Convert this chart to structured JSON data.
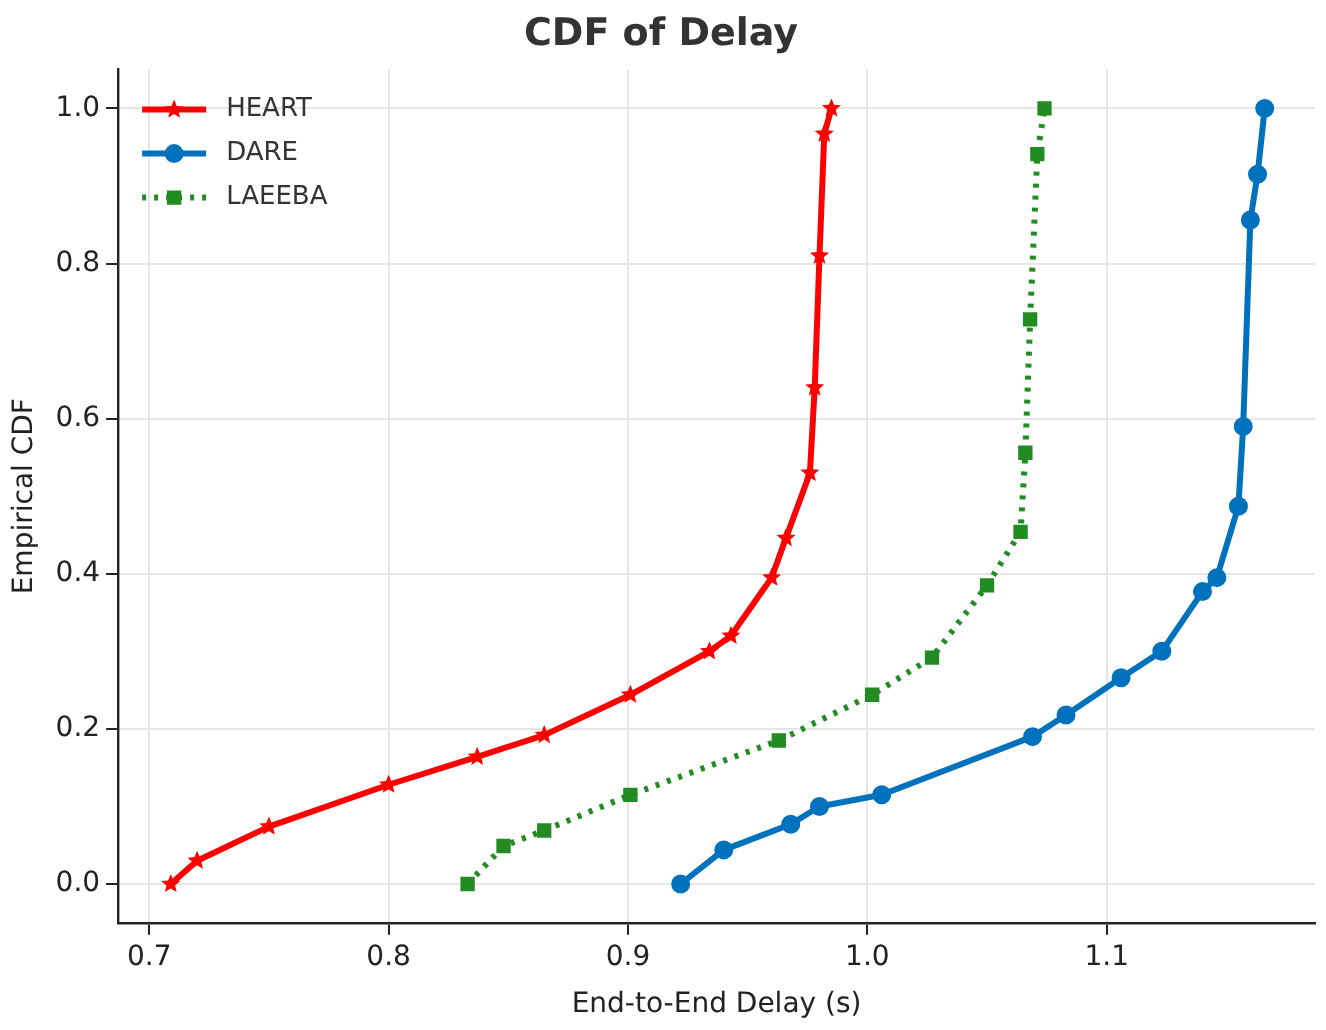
{
  "chart_data": {
    "type": "line",
    "title": "CDF of Delay",
    "xlabel": "End-to-End Delay (s)",
    "ylabel": "Empirical CDF",
    "xlim": [
      0.687,
      1.187
    ],
    "xticks": [
      0.7,
      0.8,
      0.9,
      {
        "value": 1,
        "label": "1.0"
      },
      1.1
    ],
    "ylim": [
      -0.05,
      1.05
    ],
    "yticks": [
      {
        "value": 0,
        "label": "0.0"
      },
      0.2,
      0.4,
      0.6,
      0.8,
      {
        "value": 1,
        "label": "1.0"
      }
    ],
    "grid": true,
    "legend": "top left",
    "series": [
      {
        "name": "HEART",
        "color": "#ff0000",
        "marker": "star",
        "line_style": "solid",
        "x": [
          0.709,
          0.72,
          0.75,
          0.8,
          0.837,
          0.865,
          0.901,
          0.934,
          0.943,
          0.96,
          0.966,
          0.976,
          0.978,
          0.98,
          0.982,
          0.985
        ],
        "values": [
          0,
          0.03,
          0.074,
          0.128,
          0.164,
          0.192,
          0.244,
          0.3,
          0.32,
          0.395,
          0.446,
          0.53,
          0.64,
          0.81,
          0.967,
          1
        ]
      },
      {
        "name": "DARE",
        "color": "#0072bd",
        "marker": "circle",
        "line_style": "solid",
        "x": [
          0.922,
          0.94,
          0.968,
          0.98,
          1.006,
          1.069,
          1.083,
          1.106,
          1.123,
          1.14,
          1.146,
          1.155,
          1.157,
          1.16,
          1.163,
          1.166
        ],
        "values": [
          0,
          0.044,
          0.077,
          0.1,
          0.115,
          0.19,
          0.218,
          0.266,
          0.3,
          0.377,
          0.395,
          0.487,
          0.59,
          0.856,
          0.915,
          1
        ]
      },
      {
        "name": "LAEEBA",
        "color": "#228b22",
        "marker": "square",
        "line_style": "dotted",
        "x": [
          0.833,
          0.848,
          0.865,
          0.901,
          0.963,
          1.002,
          1.027,
          1.05,
          1.064,
          1.066,
          1.068,
          1.071,
          1.074
        ],
        "values": [
          0,
          0.049,
          0.069,
          0.115,
          0.185,
          0.244,
          0.292,
          0.385,
          0.454,
          0.556,
          0.728,
          0.941,
          1
        ]
      }
    ]
  }
}
